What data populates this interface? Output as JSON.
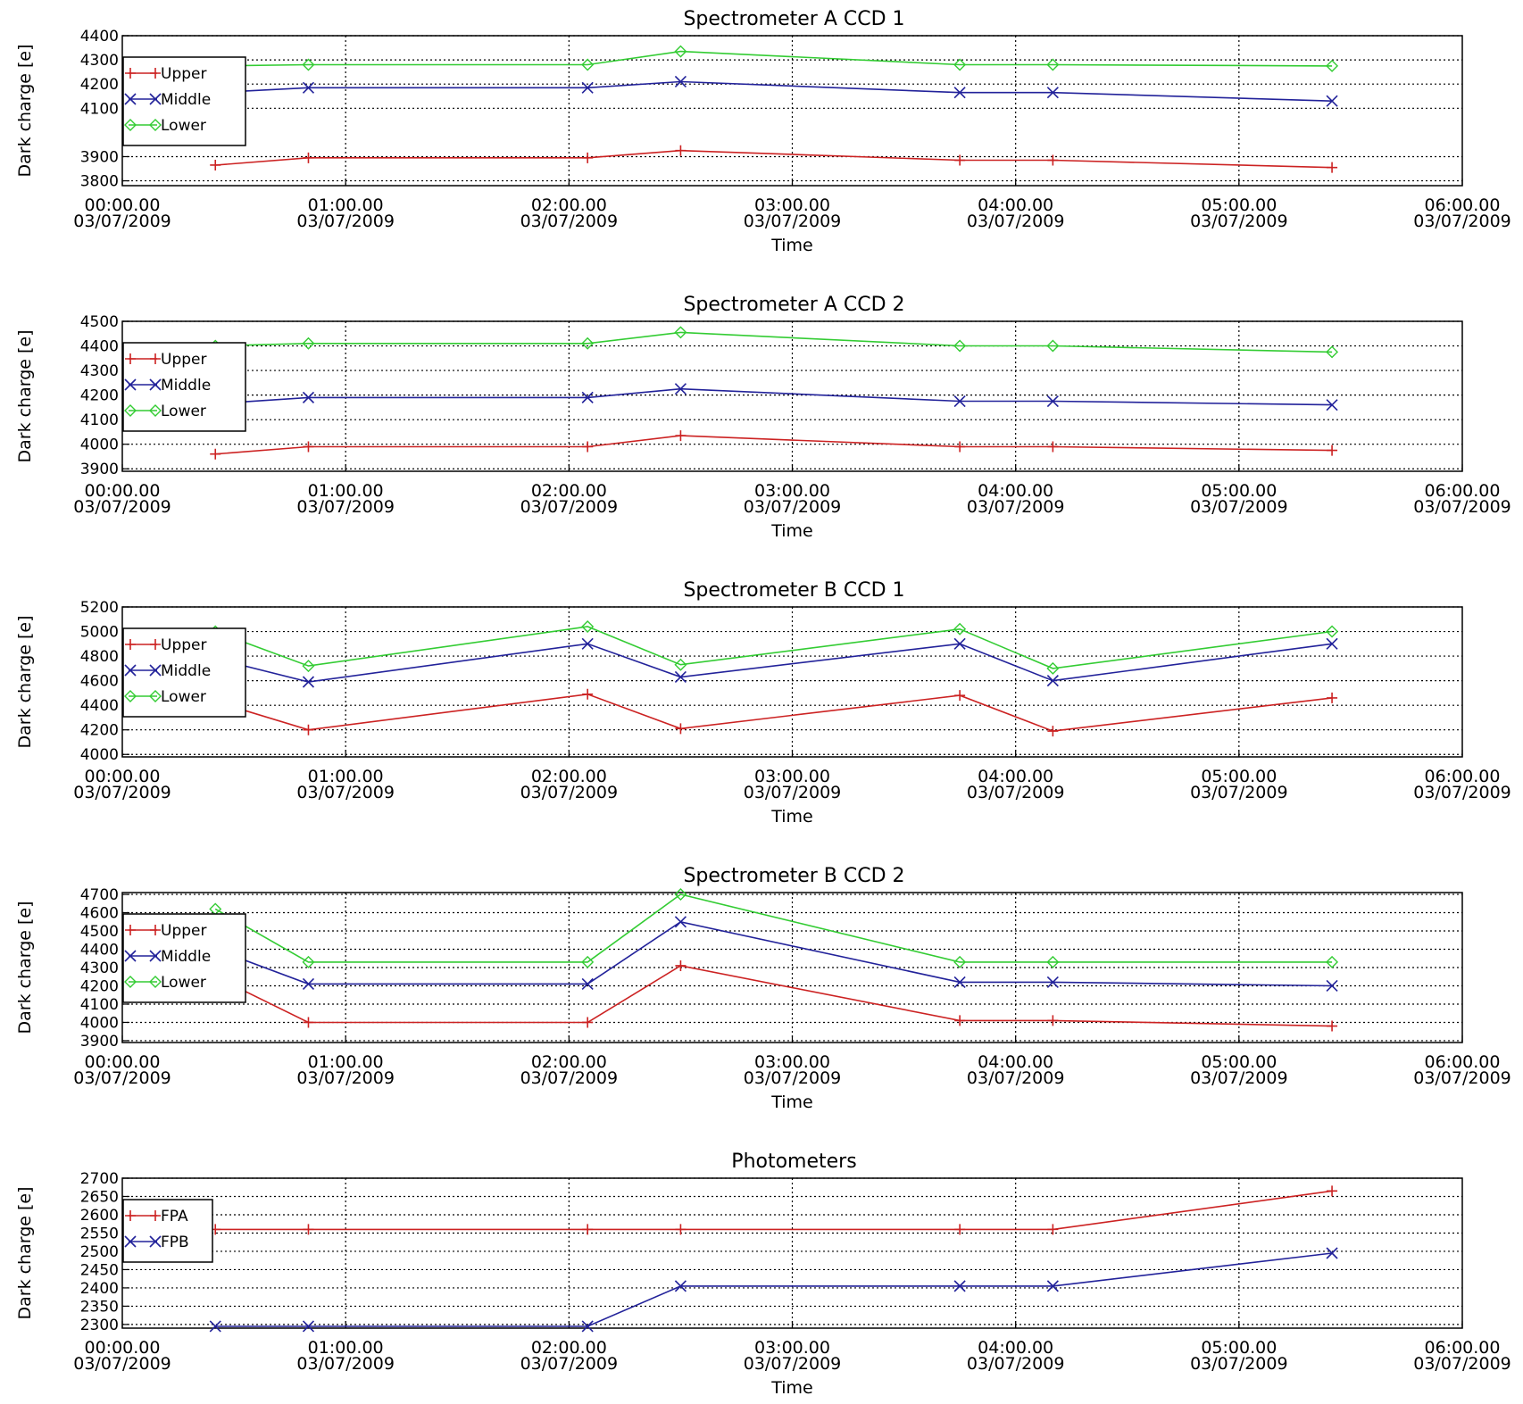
{
  "chart_data": [
    {
      "type": "line",
      "title": "Spectrometer A CCD 1",
      "xlabel": "Time",
      "ylabel": "Dark charge [e]",
      "xlim": [
        "00:00.00 03/07/2009",
        "06:00.00 03/07/2009"
      ],
      "xtick_labels": [
        [
          "00:00.00",
          "03/07/2009"
        ],
        [
          "01:00.00",
          "03/07/2009"
        ],
        [
          "02:00.00",
          "03/07/2009"
        ],
        [
          "03:00.00",
          "03/07/2009"
        ],
        [
          "04:00.00",
          "03/07/2009"
        ],
        [
          "05:00.00",
          "03/07/2009"
        ],
        [
          "06:00.00",
          "03/07/2009"
        ]
      ],
      "ylim": [
        3780,
        4400
      ],
      "yticks": [
        3800,
        3900,
        4100,
        4200,
        4300,
        4400
      ],
      "grid": true,
      "legend_position": "top-left",
      "x": [
        "00:25",
        "00:50",
        "02:05",
        "02:30",
        "03:45",
        "04:10",
        "05:25"
      ],
      "series": [
        {
          "name": "Upper",
          "marker": "plus",
          "color": "#cc2222",
          "values": [
            3865,
            3895,
            3895,
            3925,
            3885,
            3885,
            3855
          ]
        },
        {
          "name": "Middle",
          "marker": "x",
          "color": "#22229a",
          "values": [
            4165,
            4185,
            4185,
            4210,
            4165,
            4165,
            4130
          ]
        },
        {
          "name": "Lower",
          "marker": "diamond",
          "color": "#33cc33",
          "values": [
            4275,
            4280,
            4280,
            4335,
            4280,
            4280,
            4275
          ]
        }
      ]
    },
    {
      "type": "line",
      "title": "Spectrometer A CCD 2",
      "xlabel": "Time",
      "ylabel": "Dark charge [e]",
      "xlim": [
        "00:00.00 03/07/2009",
        "06:00.00 03/07/2009"
      ],
      "xtick_labels": [
        [
          "00:00.00",
          "03/07/2009"
        ],
        [
          "01:00.00",
          "03/07/2009"
        ],
        [
          "02:00.00",
          "03/07/2009"
        ],
        [
          "03:00.00",
          "03/07/2009"
        ],
        [
          "04:00.00",
          "03/07/2009"
        ],
        [
          "05:00.00",
          "03/07/2009"
        ],
        [
          "06:00.00",
          "03/07/2009"
        ]
      ],
      "ylim": [
        3890,
        4500
      ],
      "yticks": [
        3900,
        4000,
        4100,
        4200,
        4300,
        4400,
        4500
      ],
      "grid": true,
      "legend_position": "top-left",
      "x": [
        "00:25",
        "00:50",
        "02:05",
        "02:30",
        "03:45",
        "04:10",
        "05:25"
      ],
      "series": [
        {
          "name": "Upper",
          "marker": "plus",
          "color": "#cc2222",
          "values": [
            3960,
            3990,
            3990,
            4035,
            3990,
            3990,
            3975
          ]
        },
        {
          "name": "Middle",
          "marker": "x",
          "color": "#22229a",
          "values": [
            4165,
            4190,
            4190,
            4225,
            4175,
            4175,
            4160
          ]
        },
        {
          "name": "Lower",
          "marker": "diamond",
          "color": "#33cc33",
          "values": [
            4400,
            4410,
            4410,
            4455,
            4400,
            4400,
            4375
          ]
        }
      ]
    },
    {
      "type": "line",
      "title": "Spectrometer B CCD 1",
      "xlabel": "Time",
      "ylabel": "Dark charge [e]",
      "xlim": [
        "00:00.00 03/07/2009",
        "06:00.00 03/07/2009"
      ],
      "xtick_labels": [
        [
          "00:00.00",
          "03/07/2009"
        ],
        [
          "01:00.00",
          "03/07/2009"
        ],
        [
          "02:00.00",
          "03/07/2009"
        ],
        [
          "03:00.00",
          "03/07/2009"
        ],
        [
          "04:00.00",
          "03/07/2009"
        ],
        [
          "05:00.00",
          "03/07/2009"
        ],
        [
          "06:00.00",
          "03/07/2009"
        ]
      ],
      "ylim": [
        3980,
        5200
      ],
      "yticks": [
        4000,
        4200,
        4400,
        4600,
        4800,
        5000,
        5200
      ],
      "grid": true,
      "legend_position": "top-left",
      "x": [
        "00:25",
        "00:50",
        "02:05",
        "02:30",
        "03:45",
        "04:10",
        "05:25"
      ],
      "series": [
        {
          "name": "Upper",
          "marker": "plus",
          "color": "#cc2222",
          "values": [
            4430,
            4200,
            4490,
            4210,
            4480,
            4190,
            4460
          ]
        },
        {
          "name": "Middle",
          "marker": "x",
          "color": "#22229a",
          "values": [
            4780,
            4590,
            4900,
            4630,
            4900,
            4600,
            4900
          ]
        },
        {
          "name": "Lower",
          "marker": "diamond",
          "color": "#33cc33",
          "values": [
            5000,
            4720,
            5040,
            4730,
            5020,
            4700,
            5000
          ]
        }
      ]
    },
    {
      "type": "line",
      "title": "Spectrometer B CCD 2",
      "xlabel": "Time",
      "ylabel": "Dark charge [e]",
      "xlim": [
        "00:00.00 03/07/2009",
        "06:00.00 03/07/2009"
      ],
      "xtick_labels": [
        [
          "00:00.00",
          "03/07/2009"
        ],
        [
          "01:00.00",
          "03/07/2009"
        ],
        [
          "02:00.00",
          "03/07/2009"
        ],
        [
          "03:00.00",
          "03/07/2009"
        ],
        [
          "04:00.00",
          "03/07/2009"
        ],
        [
          "05:00.00",
          "03/07/2009"
        ],
        [
          "06:00.00",
          "03/07/2009"
        ]
      ],
      "ylim": [
        3890,
        4710
      ],
      "yticks": [
        3900,
        4000,
        4100,
        4200,
        4300,
        4400,
        4500,
        4600,
        4700
      ],
      "grid": true,
      "legend_position": "top-left",
      "x": [
        "00:25",
        "00:50",
        "02:05",
        "02:30",
        "03:45",
        "04:10",
        "05:25"
      ],
      "series": [
        {
          "name": "Upper",
          "marker": "plus",
          "color": "#cc2222",
          "values": [
            4250,
            4000,
            4000,
            4310,
            4010,
            4010,
            3980
          ]
        },
        {
          "name": "Middle",
          "marker": "x",
          "color": "#22229a",
          "values": [
            4400,
            4210,
            4210,
            4550,
            4220,
            4220,
            4200
          ]
        },
        {
          "name": "Lower",
          "marker": "diamond",
          "color": "#33cc33",
          "values": [
            4620,
            4330,
            4330,
            4700,
            4330,
            4330,
            4330
          ]
        }
      ]
    },
    {
      "type": "line",
      "title": "Photometers",
      "xlabel": "Time",
      "ylabel": "Dark charge [e]",
      "xlim": [
        "00:00.00 03/07/2009",
        "06:00.00 03/07/2009"
      ],
      "xtick_labels": [
        [
          "00:00.00",
          "03/07/2009"
        ],
        [
          "01:00.00",
          "03/07/2009"
        ],
        [
          "02:00.00",
          "03/07/2009"
        ],
        [
          "03:00.00",
          "03/07/2009"
        ],
        [
          "04:00.00",
          "03/07/2009"
        ],
        [
          "05:00.00",
          "03/07/2009"
        ],
        [
          "06:00.00",
          "03/07/2009"
        ]
      ],
      "ylim": [
        2290,
        2700
      ],
      "yticks": [
        2300,
        2350,
        2400,
        2450,
        2500,
        2550,
        2600,
        2650,
        2700
      ],
      "grid": true,
      "legend_position": "top-left",
      "x": [
        "00:25",
        "00:50",
        "02:05",
        "02:30",
        "03:45",
        "04:10",
        "05:25"
      ],
      "series": [
        {
          "name": "FPA",
          "marker": "plus",
          "color": "#cc2222",
          "values": [
            2560,
            2560,
            2560,
            2560,
            2560,
            2560,
            2665
          ]
        },
        {
          "name": "FPB",
          "marker": "x",
          "color": "#22229a",
          "values": [
            2295,
            2295,
            2295,
            2405,
            2405,
            2405,
            2495
          ]
        }
      ]
    }
  ]
}
